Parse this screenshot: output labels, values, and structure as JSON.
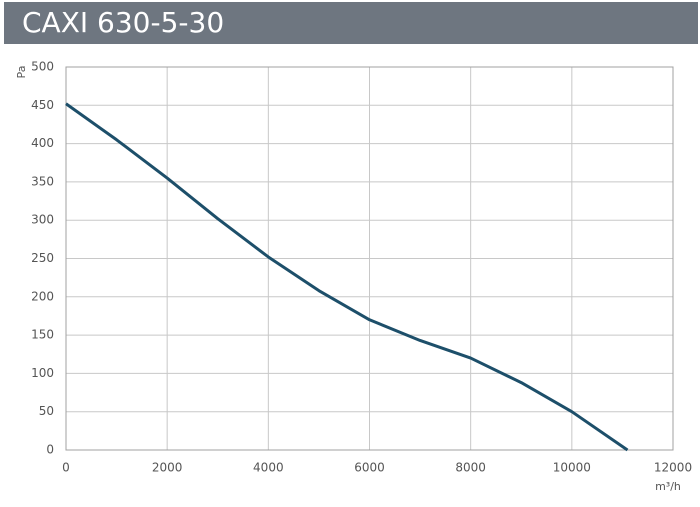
{
  "chart_data": {
    "type": "line",
    "title": "CAXI 630-5-30",
    "x_label": "m³/h",
    "y_label": "Pa",
    "x": [
      0,
      1000,
      2000,
      3000,
      4000,
      5000,
      6000,
      7000,
      8000,
      9000,
      10000,
      11100
    ],
    "series": [
      {
        "name": "CAXI 630-5-30",
        "color": "#1d4f6a",
        "values": [
          452,
          405,
          355,
          302,
          252,
          208,
          170,
          143,
          120,
          88,
          50,
          0
        ]
      }
    ],
    "xlim": [
      0,
      12000
    ],
    "xticks": [
      0,
      2000,
      4000,
      6000,
      8000,
      10000,
      12000
    ],
    "ylim": [
      0,
      500
    ],
    "yticks": [
      0,
      50,
      100,
      150,
      200,
      250,
      300,
      350,
      400,
      450,
      500
    ],
    "grid": true
  }
}
